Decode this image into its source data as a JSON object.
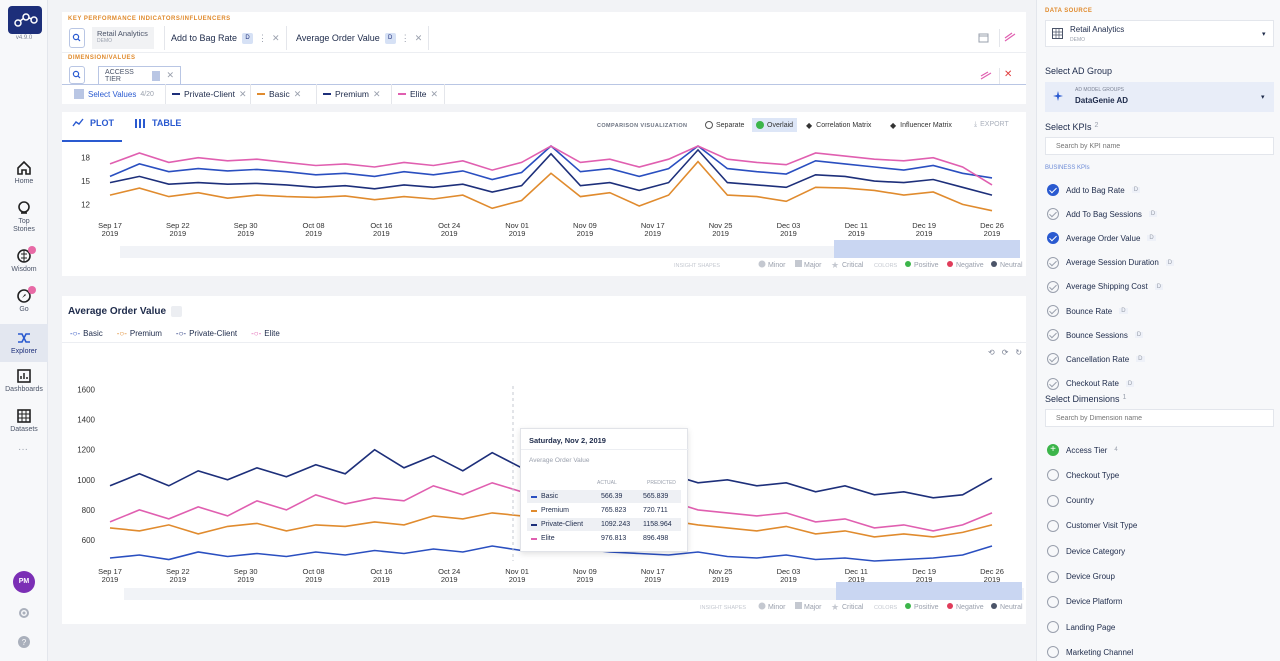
{
  "app": {
    "version": "v4.9.0"
  },
  "leftnav": {
    "items": [
      {
        "label": "Home"
      },
      {
        "label": "Top Stories"
      },
      {
        "label": "Wisdom"
      },
      {
        "label": "Go"
      },
      {
        "label": "Explorer"
      },
      {
        "label": "Dashboards"
      },
      {
        "label": "Datasets"
      }
    ],
    "avatar": "PM"
  },
  "kpi_bar": {
    "header": "KEY PERFORMANCE INDICATORS/INFLUENCERS",
    "datasource_chip": {
      "title": "Retail Analytics",
      "sub": "DEMO"
    },
    "kpis": [
      {
        "label": "Add to Bag Rate",
        "badge": "D"
      },
      {
        "label": "Average Order Value",
        "badge": "D"
      }
    ]
  },
  "dimension_bar": {
    "header": "DIMENSION/VALUES",
    "dimension": "ACCESS TIER",
    "select_values": "Select Values",
    "select_count": "4/20",
    "values": [
      {
        "label": "Private-Client",
        "color": "#1d2f7a"
      },
      {
        "label": "Basic",
        "color": "#e08b2e"
      },
      {
        "label": "Premium",
        "color": "#1d2f7a"
      },
      {
        "label": "Elite",
        "color": "#e05fb0"
      }
    ]
  },
  "view_tabs": {
    "plot": "PLOT",
    "table": "TABLE"
  },
  "comparison": {
    "label": "COMPARISON VISUALIZATION",
    "separate": "Separate",
    "overlaid": "Overlaid",
    "correlation": "Correlation Matrix",
    "influencer": "Influencer Matrix",
    "export": "EXPORT"
  },
  "anomaly_legend": {
    "shapes_label": "INSIGHT SHAPES",
    "minor": "Minor",
    "major": "Major",
    "critical": "Critical",
    "colors_label": "COLORS",
    "positive": "Positive",
    "negative": "Negative",
    "neutral": "Neutral"
  },
  "date_ticks": [
    {
      "d": "Sep 17",
      "y": "2019"
    },
    {
      "d": "Sep 22",
      "y": "2019"
    },
    {
      "d": "Sep 30",
      "y": "2019"
    },
    {
      "d": "Oct 08",
      "y": "2019"
    },
    {
      "d": "Oct 16",
      "y": "2019"
    },
    {
      "d": "Oct 24",
      "y": "2019"
    },
    {
      "d": "Nov 01",
      "y": "2019"
    },
    {
      "d": "Nov 09",
      "y": "2019"
    },
    {
      "d": "Nov 17",
      "y": "2019"
    },
    {
      "d": "Nov 25",
      "y": "2019"
    },
    {
      "d": "Dec 03",
      "y": "2019"
    },
    {
      "d": "Dec 11",
      "y": "2019"
    },
    {
      "d": "Dec 19",
      "y": "2019"
    },
    {
      "d": "Dec 26",
      "y": "2019"
    }
  ],
  "chart_data": [
    {
      "type": "line",
      "title": "",
      "y_ticks": [
        12,
        15,
        18
      ],
      "x_ticks": [
        "Sep 17 2019",
        "Sep 22 2019",
        "Sep 30 2019",
        "Oct 08 2019",
        "Oct 16 2019",
        "Oct 24 2019",
        "Nov 01 2019",
        "Nov 09 2019",
        "Nov 17 2019",
        "Nov 25 2019",
        "Dec 03 2019",
        "Dec 11 2019",
        "Dec 19 2019",
        "Dec 26 2019"
      ],
      "series": [
        {
          "name": "Basic",
          "color": "#e08b2e",
          "values": [
            13.2,
            14.1,
            13.0,
            13.5,
            12.8,
            13.2,
            13.0,
            12.9,
            13.1,
            12.6,
            13.0,
            12.7,
            13.2,
            11.5,
            12.5,
            16.0,
            13.0,
            13.5,
            11.8,
            13.2,
            17.5,
            13.2,
            13.0,
            12.4,
            14.2,
            14.1,
            13.8,
            13.2,
            13.6,
            12.0,
            11.2
          ]
        },
        {
          "name": "Premium",
          "color": "#1d2f7a",
          "values": [
            14.8,
            15.6,
            14.6,
            14.8,
            14.6,
            14.7,
            14.5,
            14.2,
            14.4,
            14.0,
            14.5,
            14.2,
            14.6,
            13.6,
            14.4,
            18.5,
            14.4,
            14.8,
            13.8,
            14.8,
            19.0,
            14.8,
            14.5,
            14.2,
            15.8,
            15.6,
            15.0,
            14.8,
            15.2,
            14.2,
            13.2
          ]
        },
        {
          "name": "Private-Client",
          "color": "#2a4fc0",
          "values": [
            15.6,
            17.2,
            16.2,
            16.6,
            16.3,
            16.5,
            16.2,
            15.8,
            16.0,
            15.6,
            16.2,
            15.8,
            16.3,
            15.2,
            16.1,
            19.5,
            16.2,
            16.6,
            15.6,
            16.6,
            19.5,
            16.6,
            16.2,
            15.9,
            17.6,
            17.2,
            16.8,
            16.4,
            17.0,
            16.0,
            15.4
          ]
        },
        {
          "name": "Elite",
          "color": "#e05fb0",
          "values": [
            17.2,
            18.6,
            17.4,
            18.0,
            17.6,
            17.8,
            17.4,
            17.0,
            17.2,
            16.8,
            17.4,
            17.0,
            17.6,
            16.4,
            17.4,
            19.5,
            17.4,
            17.8,
            16.8,
            17.8,
            19.5,
            17.8,
            17.4,
            17.1,
            18.6,
            18.2,
            17.8,
            17.6,
            18.0,
            16.8,
            14.5
          ]
        }
      ]
    },
    {
      "type": "line",
      "title": "Average Order Value",
      "y_ticks": [
        600,
        800,
        1000,
        1200,
        1400,
        1600
      ],
      "x_ticks": [
        "Sep 17 2019",
        "Sep 22 2019",
        "Sep 30 2019",
        "Oct 08 2019",
        "Oct 16 2019",
        "Oct 24 2019",
        "Nov 01 2019",
        "Nov 09 2019",
        "Nov 17 2019",
        "Nov 25 2019",
        "Dec 03 2019",
        "Dec 11 2019",
        "Dec 19 2019",
        "Dec 26 2019"
      ],
      "legend": [
        "Basic",
        "Premium",
        "Private-Client",
        "Elite"
      ],
      "series": [
        {
          "name": "Basic",
          "color": "#2a4fc0",
          "values": [
            480,
            500,
            470,
            520,
            490,
            510,
            490,
            520,
            500,
            530,
            510,
            540,
            520,
            560,
            530,
            566,
            540,
            520,
            510,
            500,
            520,
            490,
            480,
            500,
            470,
            480,
            460,
            470,
            480,
            500,
            560
          ]
        },
        {
          "name": "Premium",
          "color": "#e08b2e",
          "values": [
            680,
            660,
            700,
            640,
            690,
            710,
            660,
            700,
            690,
            720,
            700,
            760,
            740,
            780,
            760,
            766,
            740,
            720,
            700,
            730,
            700,
            680,
            660,
            690,
            640,
            660,
            620,
            640,
            620,
            650,
            700
          ]
        },
        {
          "name": "Private-Client",
          "color": "#1d2f7a",
          "values": [
            960,
            1040,
            960,
            1060,
            1000,
            1080,
            1020,
            1100,
            1040,
            1200,
            1080,
            1160,
            1060,
            1180,
            1080,
            1092,
            1000,
            1020,
            980,
            1040,
            980,
            1000,
            960,
            980,
            920,
            960,
            900,
            920,
            880,
            900,
            1010
          ]
        },
        {
          "name": "Elite",
          "color": "#e05fb0",
          "values": [
            720,
            800,
            740,
            820,
            760,
            860,
            800,
            900,
            840,
            880,
            860,
            960,
            900,
            980,
            920,
            977,
            880,
            860,
            820,
            860,
            800,
            780,
            760,
            780,
            720,
            740,
            680,
            700,
            660,
            700,
            780
          ]
        }
      ]
    }
  ],
  "chart2": {
    "title": "Average Order Value",
    "legend": [
      {
        "name": "Basic",
        "color": "#2a4fc0"
      },
      {
        "name": "Premium",
        "color": "#e08b2e"
      },
      {
        "name": "Private-Client",
        "color": "#1d2f7a"
      },
      {
        "name": "Elite",
        "color": "#e05fb0"
      }
    ]
  },
  "tooltip": {
    "date": "Saturday, Nov 2, 2019",
    "metric": "Average Order Value",
    "col_actual": "ACTUAL",
    "col_predicted": "PREDICTED",
    "rows": [
      {
        "name": "Basic",
        "actual": "566.39",
        "predicted": "565.839",
        "color": "#2a4fc0"
      },
      {
        "name": "Premium",
        "actual": "765.823",
        "predicted": "720.711",
        "color": "#e08b2e"
      },
      {
        "name": "Private-Client",
        "actual": "1092.243",
        "predicted": "1158.964",
        "color": "#1d2f7a"
      },
      {
        "name": "Elite",
        "actual": "976.813",
        "predicted": "896.498",
        "color": "#e05fb0"
      }
    ]
  },
  "right_panel": {
    "data_source_header": "DATA SOURCE",
    "data_source": {
      "title": "Retail Analytics",
      "sub": "DEMO"
    },
    "ad_group_label": "Select AD Group",
    "ad_group": {
      "sub": "AD MODEL GROUPS",
      "title": "DataGenie AD"
    },
    "kpis_label": "Select KPIs",
    "kpis_count": "2",
    "kpi_search_placeholder": "Search by KPI name",
    "business_kpis_header": "BUSINESS KPIs",
    "kpis": [
      {
        "label": "Add to Bag Rate",
        "checked": true
      },
      {
        "label": "Add To Bag Sessions",
        "checked": false
      },
      {
        "label": "Average Order Value",
        "checked": true
      },
      {
        "label": "Average Session Duration",
        "checked": false
      },
      {
        "label": "Average Shipping Cost",
        "checked": false
      },
      {
        "label": "Bounce Rate",
        "checked": false
      },
      {
        "label": "Bounce Sessions",
        "checked": false
      },
      {
        "label": "Cancellation Rate",
        "checked": false
      },
      {
        "label": "Checkout Rate",
        "checked": false
      }
    ],
    "dims_label": "Select Dimensions",
    "dims_count": "1",
    "dim_search_placeholder": "Search by Dimension name",
    "dimensions": [
      {
        "label": "Access Tier",
        "count": "4",
        "selected": true
      },
      {
        "label": "Checkout Type"
      },
      {
        "label": "Country"
      },
      {
        "label": "Customer Visit Type"
      },
      {
        "label": "Device Category"
      },
      {
        "label": "Device Group"
      },
      {
        "label": "Device Platform"
      },
      {
        "label": "Landing Page"
      },
      {
        "label": "Marketing Channel"
      }
    ]
  }
}
